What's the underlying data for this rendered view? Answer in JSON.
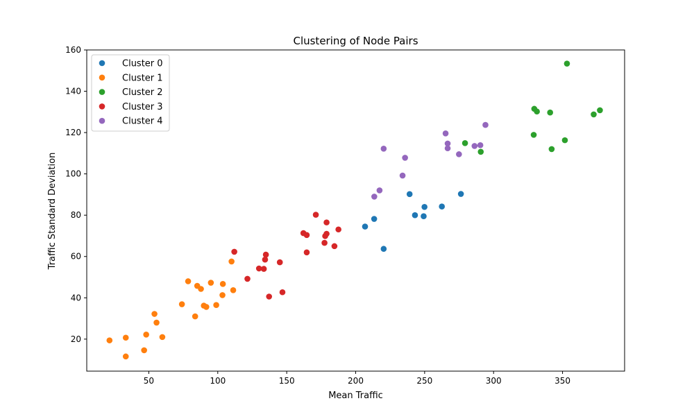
{
  "chart_data": {
    "type": "scatter",
    "title": "Clustering of Node Pairs",
    "xlabel": "Mean Traffic",
    "ylabel": "Traffic Standard Deviation",
    "xlim": [
      5,
      395
    ],
    "ylim": [
      4.5,
      160
    ],
    "xticks": [
      50,
      100,
      150,
      200,
      250,
      300,
      350
    ],
    "yticks": [
      20,
      40,
      60,
      80,
      100,
      120,
      140,
      160
    ],
    "grid": false,
    "legend_position": "top-left",
    "series": [
      {
        "name": "Cluster 0",
        "color": "#1f77b4",
        "points": [
          [
            206.8,
            74.5
          ],
          [
            213.4,
            78.2
          ],
          [
            220.3,
            63.7
          ],
          [
            239.1,
            90.2
          ],
          [
            243.0,
            80.0
          ],
          [
            249.3,
            79.5
          ],
          [
            249.9,
            84.0
          ],
          [
            262.5,
            84.2
          ],
          [
            276.3,
            90.3
          ]
        ]
      },
      {
        "name": "Cluster 1",
        "color": "#ff7f0e",
        "points": [
          [
            21.5,
            19.4
          ],
          [
            33.3,
            20.7
          ],
          [
            33.3,
            11.6
          ],
          [
            46.6,
            14.6
          ],
          [
            48.1,
            22.2
          ],
          [
            54.1,
            32.2
          ],
          [
            55.6,
            28.0
          ],
          [
            59.8,
            21.0
          ],
          [
            74.0,
            36.9
          ],
          [
            78.5,
            48.0
          ],
          [
            83.6,
            31.0
          ],
          [
            85.1,
            45.8
          ],
          [
            87.8,
            44.3
          ],
          [
            89.9,
            36.2
          ],
          [
            91.7,
            35.6
          ],
          [
            95.0,
            47.3
          ],
          [
            98.9,
            36.5
          ],
          [
            103.4,
            41.3
          ],
          [
            103.7,
            46.7
          ],
          [
            110.0,
            57.6
          ],
          [
            111.2,
            43.7
          ]
        ]
      },
      {
        "name": "Cluster 2",
        "color": "#2ca02c",
        "points": [
          [
            279.3,
            114.9
          ],
          [
            290.7,
            110.7
          ],
          [
            329.1,
            118.9
          ],
          [
            329.5,
            131.5
          ],
          [
            331.4,
            130.2
          ],
          [
            341.0,
            129.7
          ],
          [
            342.1,
            112.0
          ],
          [
            351.7,
            116.3
          ],
          [
            353.2,
            153.4
          ],
          [
            372.6,
            128.8
          ],
          [
            377.1,
            130.8
          ]
        ]
      },
      {
        "name": "Cluster 3",
        "color": "#d62728",
        "points": [
          [
            112.0,
            62.3
          ],
          [
            121.5,
            49.2
          ],
          [
            129.9,
            54.2
          ],
          [
            133.4,
            54.0
          ],
          [
            134.3,
            58.5
          ],
          [
            134.9,
            60.9
          ],
          [
            137.2,
            40.6
          ],
          [
            145.0,
            57.2
          ],
          [
            146.9,
            42.7
          ],
          [
            162.1,
            71.3
          ],
          [
            164.5,
            70.4
          ],
          [
            164.5,
            62.0
          ],
          [
            171.1,
            80.2
          ],
          [
            177.4,
            66.6
          ],
          [
            177.9,
            69.9
          ],
          [
            178.9,
            71.0
          ],
          [
            178.9,
            76.5
          ],
          [
            184.6,
            65.0
          ],
          [
            187.5,
            73.1
          ]
        ]
      },
      {
        "name": "Cluster 4",
        "color": "#9467bd",
        "points": [
          [
            213.5,
            89.0
          ],
          [
            217.3,
            92.0
          ],
          [
            220.3,
            112.2
          ],
          [
            234.0,
            99.2
          ],
          [
            235.8,
            107.8
          ],
          [
            265.2,
            119.6
          ],
          [
            266.7,
            114.7
          ],
          [
            266.7,
            112.4
          ],
          [
            274.9,
            109.5
          ],
          [
            286.2,
            113.5
          ],
          [
            290.4,
            113.9
          ],
          [
            294.1,
            123.7
          ]
        ]
      }
    ]
  }
}
